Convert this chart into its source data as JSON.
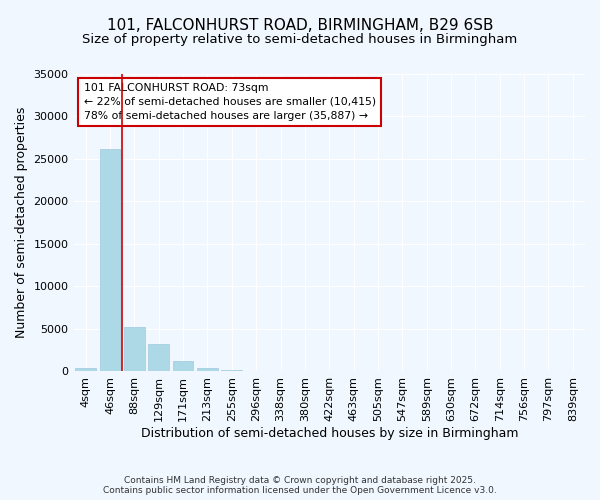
{
  "title": "101, FALCONHURST ROAD, BIRMINGHAM, B29 6SB",
  "subtitle": "Size of property relative to semi-detached houses in Birmingham",
  "xlabel": "Distribution of semi-detached houses by size in Birmingham",
  "ylabel": "Number of semi-detached properties",
  "categories": [
    "4sqm",
    "46sqm",
    "88sqm",
    "129sqm",
    "171sqm",
    "213sqm",
    "255sqm",
    "296sqm",
    "338sqm",
    "380sqm",
    "422sqm",
    "463sqm",
    "505sqm",
    "547sqm",
    "589sqm",
    "630sqm",
    "672sqm",
    "714sqm",
    "756sqm",
    "797sqm",
    "839sqm"
  ],
  "values": [
    400,
    26200,
    5200,
    3200,
    1200,
    400,
    200,
    0,
    0,
    0,
    0,
    0,
    0,
    0,
    0,
    0,
    0,
    0,
    0,
    0,
    0
  ],
  "bar_color": "#add8e6",
  "annotation_text": "101 FALCONHURST ROAD: 73sqm\n← 22% of semi-detached houses are smaller (10,415)\n78% of semi-detached houses are larger (35,887) →",
  "annotation_box_color": "#ffffff",
  "annotation_box_edge": "#cc0000",
  "red_line_x": 1.5,
  "ylim": [
    0,
    35000
  ],
  "yticks": [
    0,
    5000,
    10000,
    15000,
    20000,
    25000,
    30000,
    35000
  ],
  "footer1": "Contains HM Land Registry data © Crown copyright and database right 2025.",
  "footer2": "Contains public sector information licensed under the Open Government Licence v3.0.",
  "bg_color": "#f0f7ff",
  "plot_bg_color": "#f0f7ff",
  "title_fontsize": 11,
  "subtitle_fontsize": 9.5,
  "axis_label_fontsize": 9,
  "tick_fontsize": 8
}
